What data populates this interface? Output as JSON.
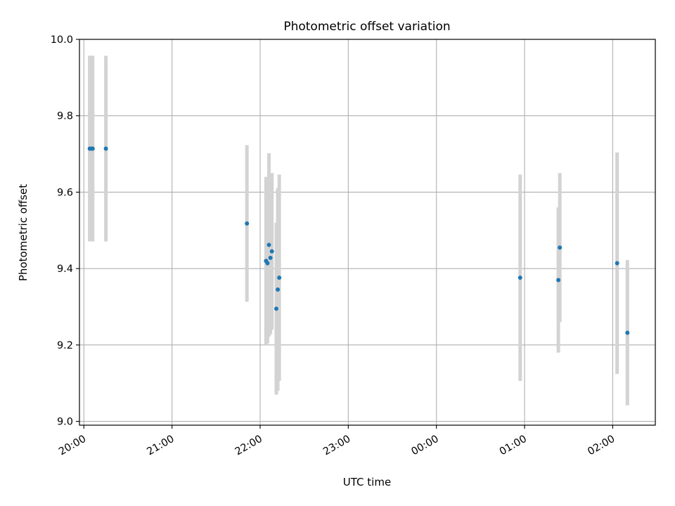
{
  "chart_data": {
    "type": "scatter",
    "title": "Photometric offset variation",
    "xlabel": "UTC time",
    "ylabel": "Photometric offset",
    "x_axis_type": "time",
    "xlim": [
      "19:57",
      "02:29 (+1 day)"
    ],
    "ylim": [
      8.99,
      10.0
    ],
    "x_ticks": [
      "20:00",
      "21:00",
      "22:00",
      "23:00",
      "00:00",
      "01:00",
      "02:00"
    ],
    "y_ticks": [
      "9.0",
      "9.2",
      "9.4",
      "9.6",
      "9.8",
      "10.0"
    ],
    "grid": true,
    "legend": "none",
    "colors": {
      "point": "#1f77b4",
      "errorbar": "#d3d3d3",
      "grid": "#b0b0b0"
    },
    "points": [
      {
        "time": "20:04",
        "y": 9.714,
        "err": 0.243
      },
      {
        "time": "20:05",
        "y": 9.714,
        "err": 0.243
      },
      {
        "time": "20:06",
        "y": 9.714,
        "err": 0.243
      },
      {
        "time": "20:15",
        "y": 9.714,
        "err": 0.243
      },
      {
        "time": "21:51",
        "y": 9.518,
        "err": 0.205
      },
      {
        "time": "22:04",
        "y": 9.42,
        "err": 0.22
      },
      {
        "time": "22:05",
        "y": 9.414,
        "err": 0.21
      },
      {
        "time": "22:06",
        "y": 9.462,
        "err": 0.24
      },
      {
        "time": "22:07",
        "y": 9.428,
        "err": 0.2
      },
      {
        "time": "22:08",
        "y": 9.445,
        "err": 0.205
      },
      {
        "time": "22:11",
        "y": 9.295,
        "err": 0.225
      },
      {
        "time": "22:12",
        "y": 9.345,
        "err": 0.265
      },
      {
        "time": "22:13",
        "y": 9.376,
        "err": 0.27
      },
      {
        "time": "00:57",
        "y": 9.376,
        "err": 0.27
      },
      {
        "time": "01:23",
        "y": 9.37,
        "err": 0.19
      },
      {
        "time": "01:24",
        "y": 9.455,
        "err": 0.195
      },
      {
        "time": "02:03",
        "y": 9.414,
        "err": 0.29
      },
      {
        "time": "02:10",
        "y": 9.232,
        "err": 0.19
      }
    ]
  }
}
